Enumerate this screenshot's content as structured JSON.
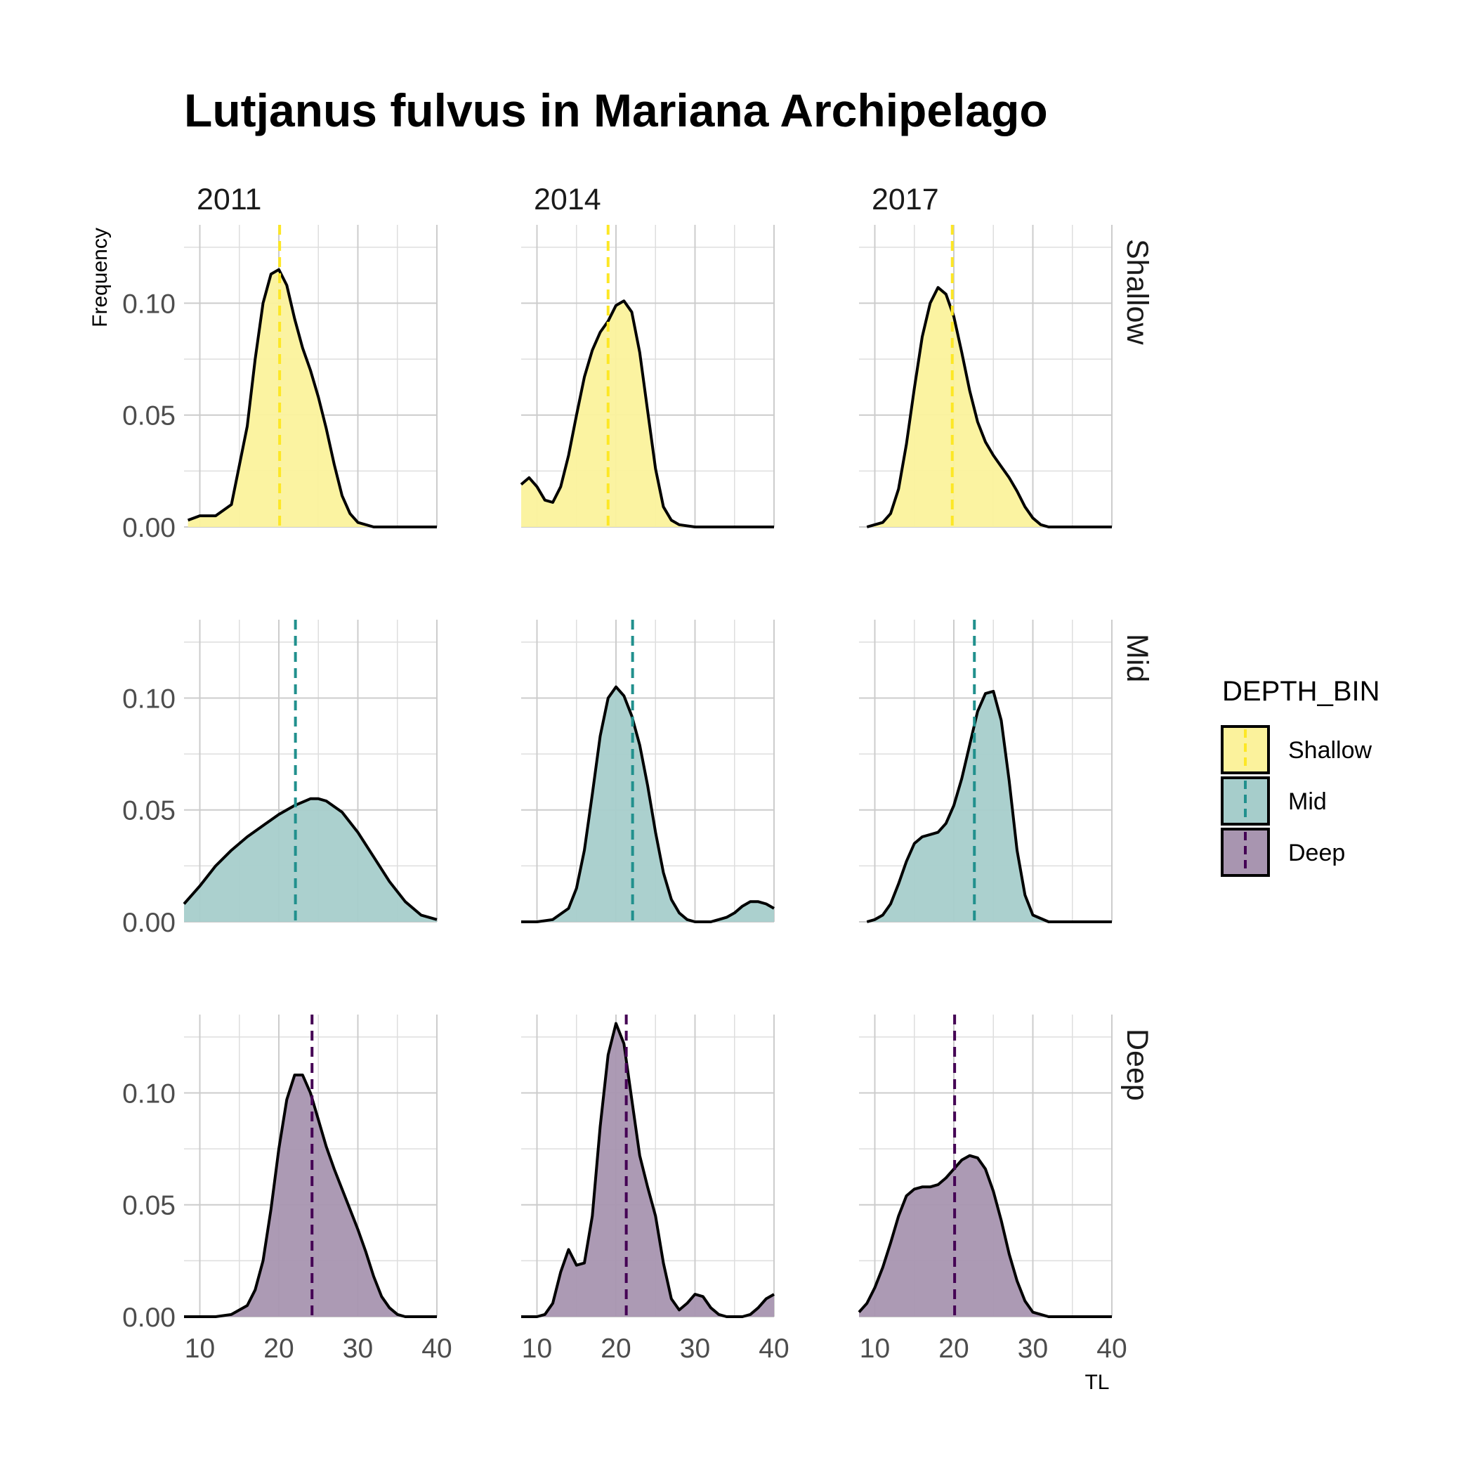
{
  "chart_data": {
    "type": "area",
    "title": "Lutjanus fulvus in Mariana Archipelago",
    "xlabel": "TL",
    "ylabel": "Frequency",
    "xlim": [
      8,
      40
    ],
    "ylim": [
      0,
      0.135
    ],
    "x_ticks": [
      "10",
      "20",
      "30",
      "40"
    ],
    "y_ticks": [
      "0.00",
      "0.05",
      "0.10"
    ],
    "x_tick_values": [
      10,
      20,
      30,
      40
    ],
    "y_tick_values": [
      0,
      0.05,
      0.1
    ],
    "columns": [
      "2011",
      "2014",
      "2017"
    ],
    "rows": [
      "Shallow",
      "Mid",
      "Deep"
    ],
    "grid": true,
    "legend": {
      "title": "DEPTH_BIN",
      "position": "right",
      "entries": [
        "Shallow",
        "Mid",
        "Deep"
      ]
    },
    "colors": {
      "Shallow": {
        "fill": "#fbf29c",
        "line": "#fde725"
      },
      "Mid": {
        "fill": "#a6cdcb",
        "line": "#21908d"
      },
      "Deep": {
        "fill": "#a895b0",
        "line": "#440154"
      }
    },
    "panels": [
      {
        "row": "Shallow",
        "year": "2011",
        "mean": 20.1,
        "x": [
          8.5,
          10,
          12,
          14,
          16,
          17,
          18,
          19,
          20,
          21,
          22,
          23,
          24,
          25,
          26,
          27,
          28,
          29,
          30,
          32,
          34,
          37,
          40
        ],
        "y": [
          0.003,
          0.005,
          0.005,
          0.01,
          0.045,
          0.075,
          0.1,
          0.113,
          0.115,
          0.108,
          0.093,
          0.08,
          0.07,
          0.058,
          0.044,
          0.028,
          0.014,
          0.006,
          0.002,
          0.0,
          0.0,
          0.0,
          0.0
        ]
      },
      {
        "row": "Shallow",
        "year": "2014",
        "mean": 19.0,
        "x": [
          8,
          9,
          10,
          11,
          12,
          13,
          14,
          15,
          16,
          17,
          18,
          19,
          20,
          21,
          22,
          23,
          24,
          25,
          26,
          27,
          28,
          30,
          35,
          40
        ],
        "y": [
          0.019,
          0.022,
          0.018,
          0.012,
          0.011,
          0.018,
          0.032,
          0.05,
          0.067,
          0.079,
          0.087,
          0.092,
          0.099,
          0.101,
          0.096,
          0.078,
          0.052,
          0.026,
          0.009,
          0.003,
          0.001,
          0.0,
          0.0,
          0.0
        ]
      },
      {
        "row": "Shallow",
        "year": "2017",
        "mean": 19.8,
        "x": [
          9,
          10,
          11,
          12,
          13,
          14,
          15,
          16,
          17,
          18,
          19,
          20,
          21,
          22,
          23,
          24,
          25,
          26,
          27,
          28,
          29,
          30,
          31,
          32,
          34,
          37,
          40
        ],
        "y": [
          0.0,
          0.001,
          0.002,
          0.006,
          0.017,
          0.037,
          0.062,
          0.085,
          0.1,
          0.107,
          0.104,
          0.094,
          0.078,
          0.061,
          0.047,
          0.038,
          0.032,
          0.027,
          0.022,
          0.016,
          0.009,
          0.004,
          0.001,
          0.0,
          0.0,
          0.0,
          0.0
        ]
      },
      {
        "row": "Mid",
        "year": "2011",
        "mean": 22.1,
        "x": [
          8,
          10,
          12,
          14,
          16,
          18,
          20,
          22,
          24,
          25,
          26,
          28,
          30,
          32,
          34,
          36,
          38,
          40
        ],
        "y": [
          0.008,
          0.016,
          0.025,
          0.032,
          0.038,
          0.043,
          0.048,
          0.052,
          0.055,
          0.055,
          0.054,
          0.049,
          0.04,
          0.029,
          0.018,
          0.009,
          0.003,
          0.001
        ]
      },
      {
        "row": "Mid",
        "year": "2014",
        "mean": 22.1,
        "x": [
          8,
          10,
          12,
          14,
          15,
          16,
          17,
          18,
          19,
          20,
          21,
          22,
          23,
          24,
          25,
          26,
          27,
          28,
          29,
          30,
          31,
          32,
          33,
          34,
          35,
          36,
          37,
          38,
          39,
          40
        ],
        "y": [
          0.0,
          0.0,
          0.001,
          0.006,
          0.015,
          0.032,
          0.057,
          0.083,
          0.1,
          0.105,
          0.101,
          0.092,
          0.079,
          0.061,
          0.04,
          0.022,
          0.01,
          0.004,
          0.001,
          0.0,
          0.0,
          0.0,
          0.001,
          0.002,
          0.004,
          0.007,
          0.009,
          0.009,
          0.008,
          0.006
        ]
      },
      {
        "row": "Mid",
        "year": "2017",
        "mean": 22.6,
        "x": [
          9,
          10,
          11,
          12,
          13,
          14,
          15,
          16,
          17,
          18,
          19,
          20,
          21,
          22,
          23,
          24,
          25,
          26,
          27,
          28,
          29,
          30,
          32,
          35,
          40
        ],
        "y": [
          0.0,
          0.001,
          0.003,
          0.008,
          0.017,
          0.027,
          0.035,
          0.038,
          0.039,
          0.04,
          0.044,
          0.052,
          0.064,
          0.079,
          0.094,
          0.102,
          0.103,
          0.09,
          0.063,
          0.032,
          0.012,
          0.003,
          0.0,
          0.0,
          0.0
        ]
      },
      {
        "row": "Deep",
        "year": "2011",
        "mean": 24.2,
        "x": [
          8,
          12,
          14,
          16,
          17,
          18,
          19,
          20,
          21,
          22,
          23,
          24,
          25,
          26,
          27,
          28,
          29,
          30,
          31,
          32,
          33,
          34,
          35,
          36,
          38,
          40
        ],
        "y": [
          0.0,
          0.0,
          0.001,
          0.005,
          0.012,
          0.025,
          0.048,
          0.075,
          0.097,
          0.108,
          0.108,
          0.1,
          0.088,
          0.076,
          0.066,
          0.057,
          0.048,
          0.039,
          0.029,
          0.018,
          0.009,
          0.004,
          0.001,
          0.0,
          0.0,
          0.0
        ]
      },
      {
        "row": "Deep",
        "year": "2014",
        "mean": 21.3,
        "x": [
          8,
          10,
          11,
          12,
          13,
          14,
          15,
          16,
          17,
          18,
          19,
          20,
          21,
          22,
          23,
          24,
          25,
          26,
          27,
          28,
          29,
          30,
          31,
          32,
          33,
          34,
          35,
          36,
          37,
          38,
          39,
          40
        ],
        "y": [
          0.0,
          0.0,
          0.001,
          0.006,
          0.02,
          0.03,
          0.023,
          0.024,
          0.045,
          0.085,
          0.117,
          0.131,
          0.122,
          0.097,
          0.072,
          0.058,
          0.045,
          0.024,
          0.008,
          0.003,
          0.006,
          0.01,
          0.009,
          0.004,
          0.001,
          0.0,
          0.0,
          0.0,
          0.001,
          0.004,
          0.008,
          0.01
        ]
      },
      {
        "row": "Deep",
        "year": "2017",
        "mean": 20.1,
        "x": [
          8,
          9,
          10,
          11,
          12,
          13,
          14,
          15,
          16,
          17,
          18,
          19,
          20,
          21,
          22,
          23,
          24,
          25,
          26,
          27,
          28,
          29,
          30,
          31,
          32,
          34,
          37,
          40
        ],
        "y": [
          0.002,
          0.006,
          0.013,
          0.022,
          0.033,
          0.045,
          0.054,
          0.057,
          0.058,
          0.058,
          0.059,
          0.062,
          0.066,
          0.07,
          0.072,
          0.071,
          0.066,
          0.056,
          0.043,
          0.028,
          0.016,
          0.007,
          0.002,
          0.001,
          0.0,
          0.0,
          0.0,
          0.0
        ]
      }
    ]
  }
}
